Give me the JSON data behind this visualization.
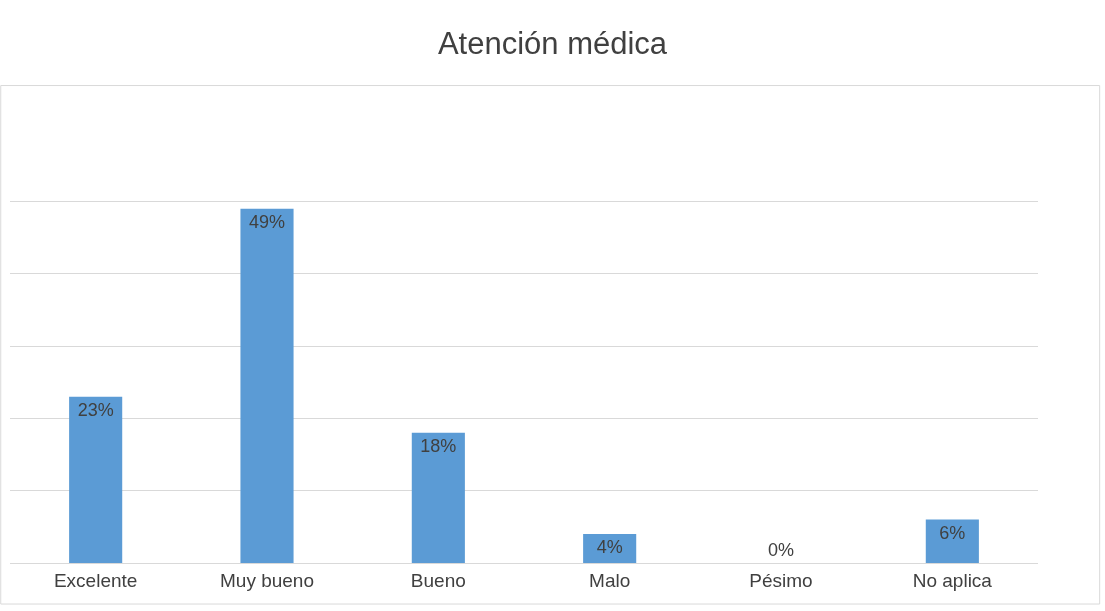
{
  "chart_data": {
    "type": "bar",
    "title": "Atención médica",
    "categories": [
      "Excelente",
      "Muy bueno",
      "Bueno",
      "Malo",
      "Pésimo",
      "No aplica"
    ],
    "values": [
      23,
      49,
      18,
      4,
      0,
      6
    ],
    "value_labels": [
      "23%",
      "49%",
      "18%",
      "4%",
      "0%",
      "6%"
    ],
    "color": "#5b9bd5",
    "yticks": [
      {
        "value": 0,
        "label": null
      },
      {
        "value": 10,
        "label": null
      },
      {
        "value": 20,
        "label": null
      },
      {
        "value": 30,
        "label": null
      },
      {
        "value": 40,
        "label": null
      },
      {
        "value": 50,
        "label": null
      }
    ],
    "grid": "y",
    "tick_labels": "x",
    "legend": false
  }
}
